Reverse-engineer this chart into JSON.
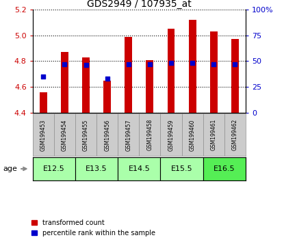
{
  "title": "GDS2949 / 107935_at",
  "samples": [
    "GSM199453",
    "GSM199454",
    "GSM199455",
    "GSM199456",
    "GSM199457",
    "GSM199458",
    "GSM199459",
    "GSM199460",
    "GSM199461",
    "GSM199462"
  ],
  "transformed_count": [
    4.56,
    4.87,
    4.83,
    4.65,
    4.99,
    4.81,
    5.05,
    5.12,
    5.03,
    4.97
  ],
  "percentile_rank": [
    35,
    47,
    46,
    33,
    47,
    47,
    48,
    48,
    47,
    47
  ],
  "ylim": [
    4.4,
    5.2
  ],
  "yticks_left": [
    4.4,
    4.6,
    4.8,
    5.0,
    5.2
  ],
  "yticks_right": [
    0,
    25,
    50,
    75,
    100
  ],
  "bar_color": "#cc0000",
  "dot_color": "#0000cc",
  "bar_bottom": 4.4,
  "age_groups": [
    {
      "label": "E12.5",
      "start": 0,
      "end": 2,
      "color": "#aaffaa"
    },
    {
      "label": "E13.5",
      "start": 2,
      "end": 4,
      "color": "#aaffaa"
    },
    {
      "label": "E14.5",
      "start": 4,
      "end": 6,
      "color": "#aaffaa"
    },
    {
      "label": "E15.5",
      "start": 6,
      "end": 8,
      "color": "#aaffaa"
    },
    {
      "label": "E16.5",
      "start": 8,
      "end": 10,
      "color": "#55ee55"
    }
  ],
  "xlabel_color": "#cc0000",
  "ylabel_right_color": "#0000cc",
  "grid_color": "#000000",
  "bg_color": "#ffffff",
  "sample_box_color": "#cccccc"
}
